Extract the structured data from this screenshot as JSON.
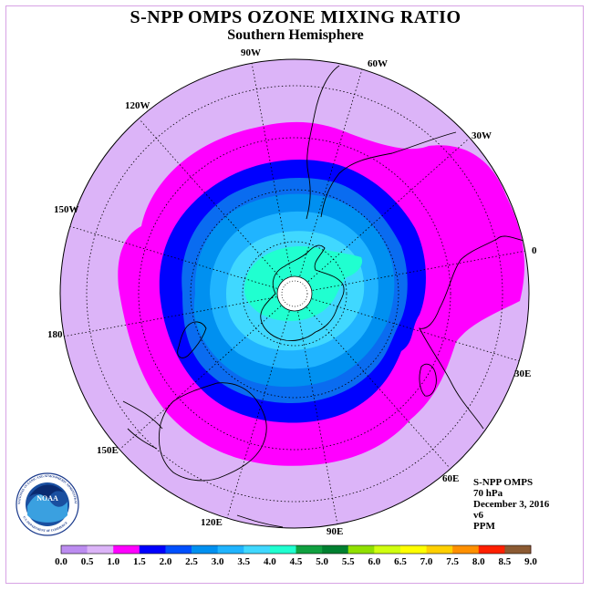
{
  "header": {
    "title": "S-NPP OMPS OZONE MIXING RATIO",
    "subtitle": "Southern Hemisphere"
  },
  "map": {
    "longitude_labels": {
      "lon_90W": "90W",
      "lon_60W": "60W",
      "lon_30W": "30W",
      "lon_0": "0",
      "lon_30E": "30E",
      "lon_60E": "60E",
      "lon_90E": "90E",
      "lon_120E": "120E",
      "lon_150E": "150E",
      "lon_180": "180",
      "lon_150W": "150W",
      "lon_120W": "120W"
    },
    "pole_hole_color": "#ffffff"
  },
  "info": {
    "instrument": "S-NPP OMPS",
    "level": "70 hPa",
    "date": "December 3, 2016",
    "version": "v6",
    "units": "PPM"
  },
  "logo": {
    "text": "NOAA",
    "ring_text": "NATIONAL OCEANIC AND ATMOSPHERIC ADMINISTRATION",
    "dept_text": "U.S. DEPARTMENT OF COMMERCE"
  },
  "colorbar": {
    "ticks": [
      "0.0",
      "0.5",
      "1.0",
      "1.5",
      "2.0",
      "2.5",
      "3.0",
      "3.5",
      "4.0",
      "4.5",
      "5.0",
      "5.5",
      "6.0",
      "6.5",
      "7.0",
      "7.5",
      "8.0",
      "8.5",
      "9.0"
    ],
    "colors": [
      "#bc8cf0",
      "#dcb4f8",
      "#ff00ff",
      "#0000ff",
      "#0050ff",
      "#0090f0",
      "#20b4ff",
      "#40d8ff",
      "#20ffd0",
      "#10a040",
      "#008030",
      "#90e000",
      "#d0ff10",
      "#ffff00",
      "#ffd000",
      "#ff9000",
      "#ff2000",
      "#e00000",
      "#8b5a32"
    ]
  },
  "colors": {
    "band_0_5": "#dcb4f8",
    "band_1_0": "#ff00ff",
    "band_1_5": "#0000ff",
    "band_2_0": "#0a6cf0",
    "band_2_5": "#0090f0",
    "band_3_0": "#20b4ff",
    "band_3_5": "#40d8ff",
    "band_4_0": "#20ffd0"
  }
}
